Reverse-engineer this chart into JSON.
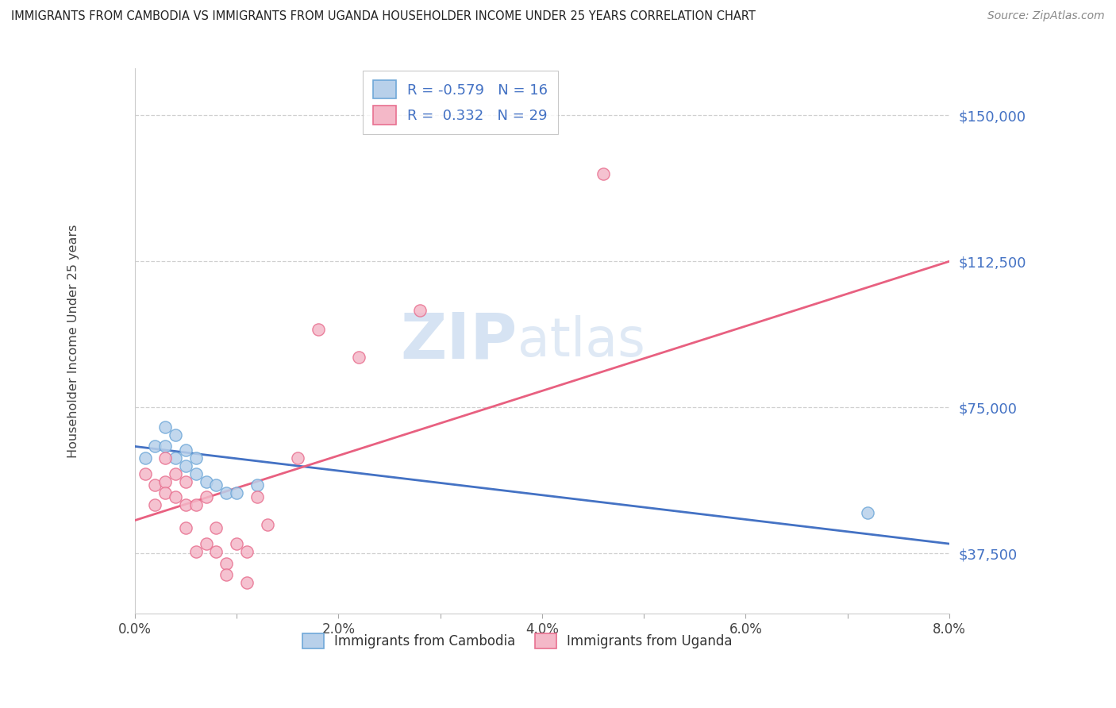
{
  "title": "IMMIGRANTS FROM CAMBODIA VS IMMIGRANTS FROM UGANDA HOUSEHOLDER INCOME UNDER 25 YEARS CORRELATION CHART",
  "source": "Source: ZipAtlas.com",
  "ylabel": "Householder Income Under 25 years",
  "xlim": [
    0.0,
    0.08
  ],
  "ylim": [
    22000,
    162000
  ],
  "yticks": [
    37500,
    75000,
    112500,
    150000
  ],
  "ytick_labels": [
    "$37,500",
    "$75,000",
    "$112,500",
    "$150,000"
  ],
  "xtick_labels": [
    "0.0%",
    "",
    "2.0%",
    "",
    "4.0%",
    "",
    "6.0%",
    "",
    "8.0%"
  ],
  "xticks": [
    0.0,
    0.01,
    0.02,
    0.03,
    0.04,
    0.05,
    0.06,
    0.07,
    0.08
  ],
  "legend_labels": [
    "Immigrants from Cambodia",
    "Immigrants from Uganda"
  ],
  "R_cambodia": -0.579,
  "N_cambodia": 16,
  "R_uganda": 0.332,
  "N_uganda": 29,
  "color_cambodia_fill": "#b8d0ea",
  "color_cambodia_edge": "#6fa8d8",
  "color_uganda_fill": "#f4b8c8",
  "color_uganda_edge": "#e87090",
  "color_blue_line": "#4472c4",
  "color_pink_line": "#e86080",
  "color_text_blue": "#4472c4",
  "watermark": "ZIPatlas",
  "background_color": "#ffffff",
  "grid_color": "#d0d0d0",
  "scatter_cambodia_x": [
    0.001,
    0.002,
    0.003,
    0.003,
    0.004,
    0.004,
    0.005,
    0.005,
    0.006,
    0.006,
    0.007,
    0.008,
    0.009,
    0.01,
    0.012,
    0.072
  ],
  "scatter_cambodia_y": [
    62000,
    65000,
    70000,
    65000,
    68000,
    62000,
    64000,
    60000,
    62000,
    58000,
    56000,
    55000,
    53000,
    53000,
    55000,
    48000
  ],
  "scatter_uganda_x": [
    0.001,
    0.002,
    0.002,
    0.003,
    0.003,
    0.003,
    0.004,
    0.004,
    0.005,
    0.005,
    0.005,
    0.006,
    0.006,
    0.007,
    0.007,
    0.008,
    0.008,
    0.009,
    0.009,
    0.01,
    0.011,
    0.011,
    0.012,
    0.013,
    0.016,
    0.018,
    0.022,
    0.028,
    0.046
  ],
  "scatter_uganda_y": [
    58000,
    55000,
    50000,
    62000,
    56000,
    53000,
    52000,
    58000,
    56000,
    50000,
    44000,
    50000,
    38000,
    52000,
    40000,
    44000,
    38000,
    35000,
    32000,
    40000,
    38000,
    30000,
    52000,
    45000,
    62000,
    95000,
    88000,
    100000,
    135000
  ],
  "line_cam_x0": 0.0,
  "line_cam_y0": 65000,
  "line_cam_x1": 0.08,
  "line_cam_y1": 40000,
  "line_ug_x0": 0.0,
  "line_ug_y0": 46000,
  "line_ug_x1": 0.08,
  "line_ug_y1": 112500
}
